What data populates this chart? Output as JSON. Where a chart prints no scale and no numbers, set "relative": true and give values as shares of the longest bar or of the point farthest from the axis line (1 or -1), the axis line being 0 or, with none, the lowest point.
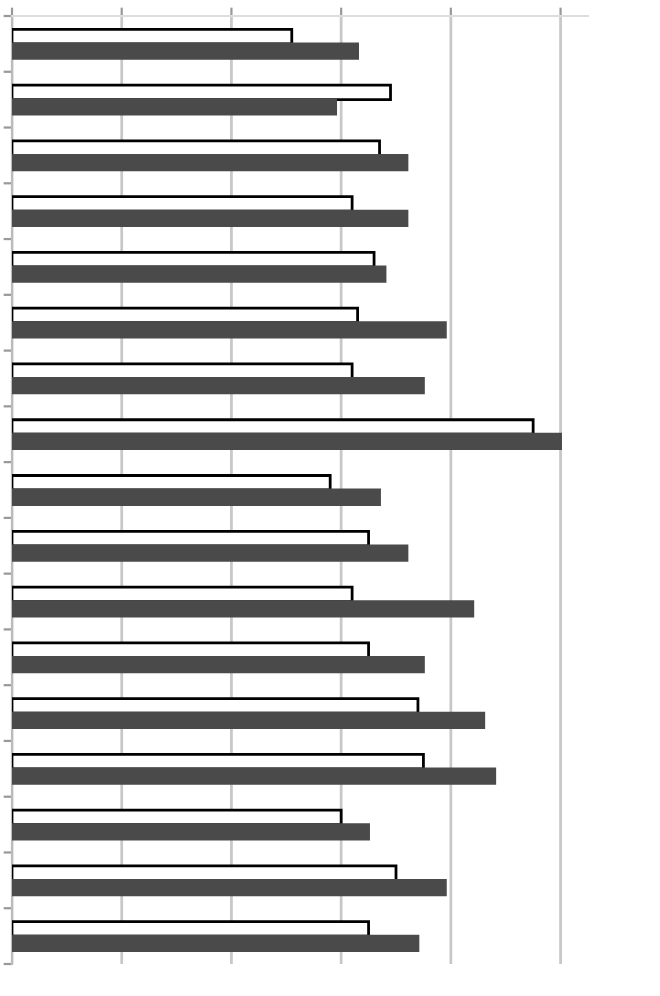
{
  "chart_data": {
    "type": "bar",
    "orientation": "horizontal",
    "relative": true,
    "grid": "x",
    "categories": [
      null,
      null,
      null,
      null,
      null,
      null,
      null,
      null,
      null,
      null,
      null,
      null,
      null,
      null,
      null,
      null,
      null
    ],
    "series": [
      {
        "color": "#ffffff",
        "values": [
          0.51,
          0.69,
          0.67,
          0.62,
          0.66,
          0.63,
          0.62,
          0.95,
          0.58,
          0.65,
          0.62,
          0.65,
          0.74,
          0.75,
          0.6,
          0.7,
          0.65
        ]
      },
      {
        "color": "#4a4a4a",
        "values": [
          0.63,
          0.59,
          0.72,
          0.72,
          0.68,
          0.79,
          0.75,
          1,
          0.67,
          0.72,
          0.84,
          0.75,
          0.86,
          0.88,
          0.65,
          0.79,
          0.74
        ]
      }
    ]
  }
}
